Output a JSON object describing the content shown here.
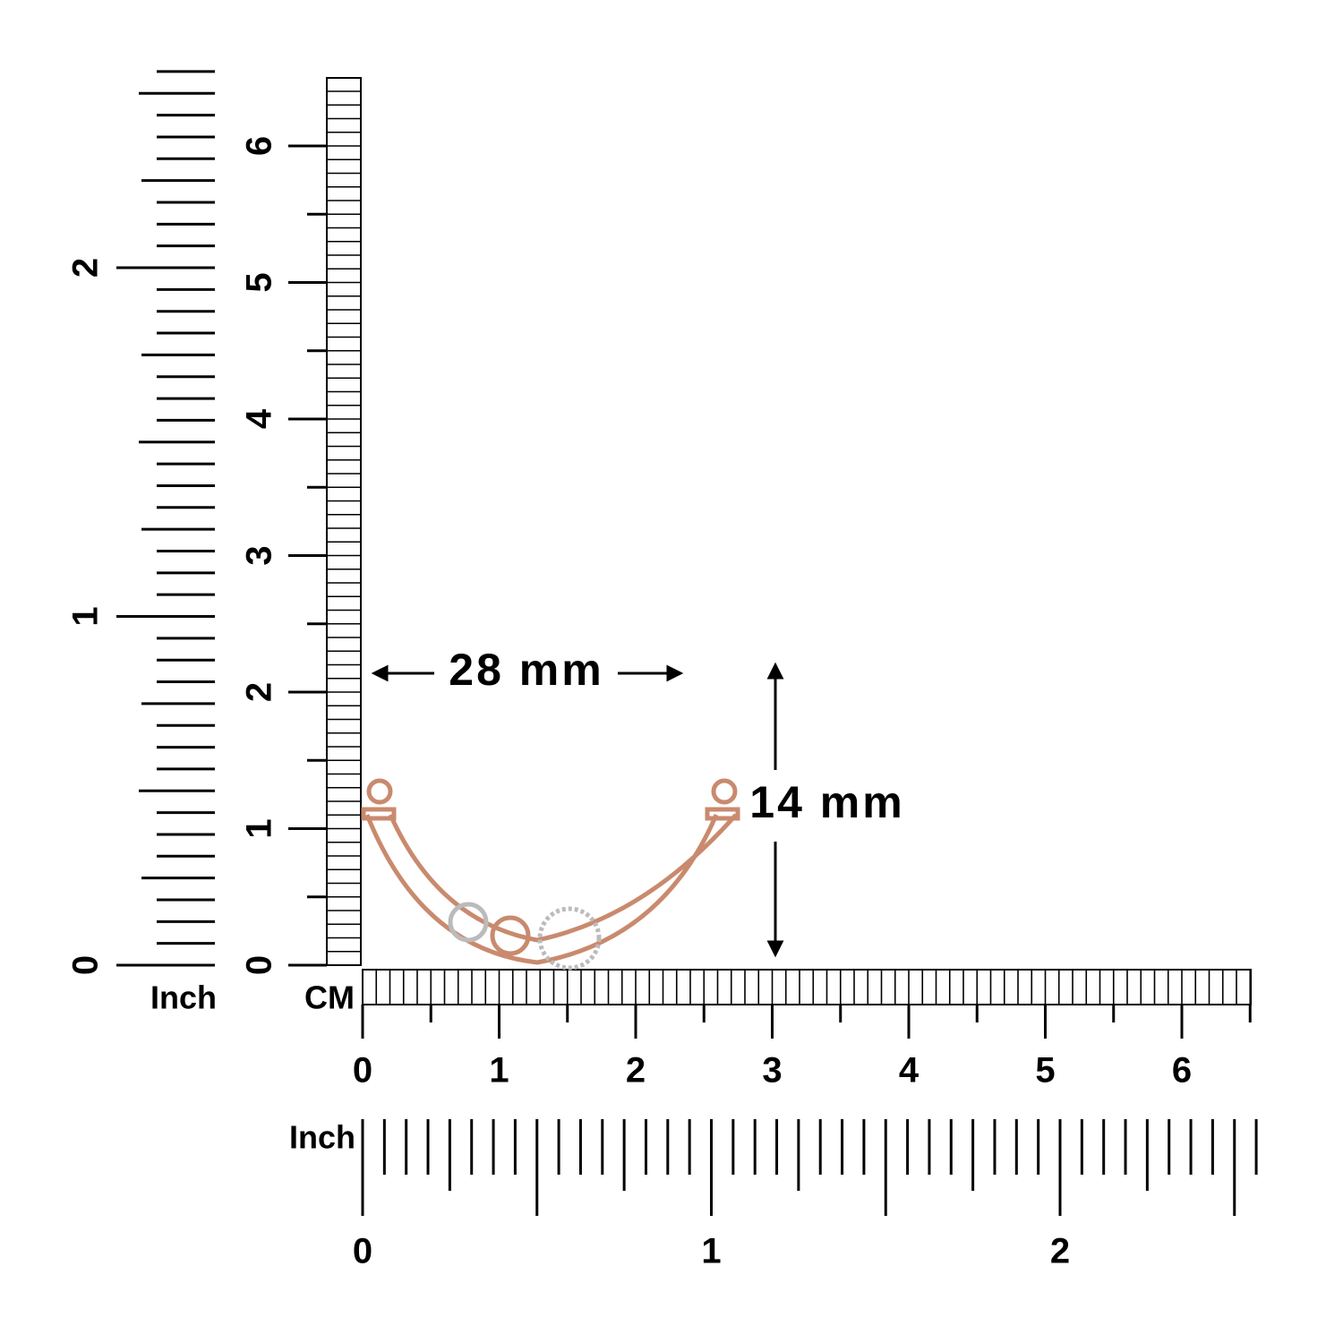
{
  "left_ruler": {
    "inch_label": "Inch",
    "inch_ticks": [
      "0",
      "1",
      "2"
    ],
    "cm_ticks": [
      "0",
      "1",
      "2",
      "3",
      "4",
      "5",
      "6"
    ]
  },
  "bottom_ruler": {
    "cm_label": "CM",
    "cm_ticks": [
      "0",
      "1",
      "2",
      "3",
      "4",
      "5",
      "6"
    ],
    "inch_label": "Inch",
    "inch_ticks": [
      "0",
      "1",
      "2"
    ]
  },
  "dimensions": {
    "width": "28 mm",
    "height": "14 mm"
  }
}
